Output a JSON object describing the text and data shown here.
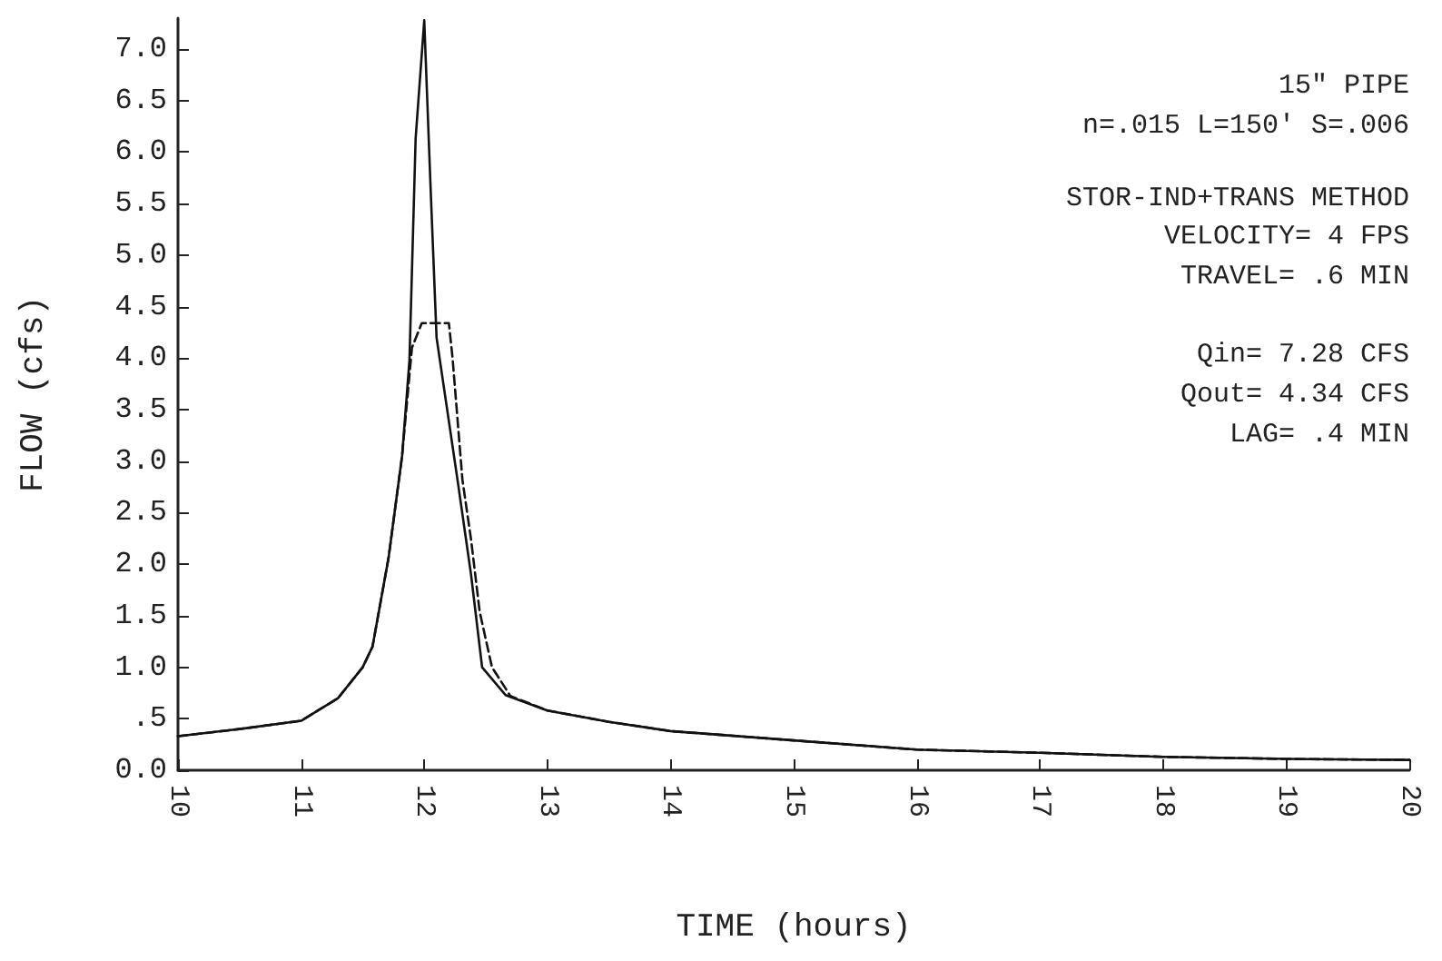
{
  "chart_data": {
    "type": "line",
    "xlabel": "TIME (hours)",
    "ylabel": "FLOW (cfs)",
    "xlim": [
      10,
      20
    ],
    "xticks": [
      10,
      11,
      12,
      13,
      14,
      15,
      16,
      17,
      18,
      19,
      20
    ],
    "ylim": [
      0,
      7.3
    ],
    "yticks": [
      {
        "value": 0,
        "label": "0.0"
      },
      {
        "value": 0.5,
        "label": ".5"
      },
      {
        "value": 1,
        "label": "1.0"
      },
      {
        "value": 1.5,
        "label": "1.5"
      },
      {
        "value": 2,
        "label": "2.0"
      },
      {
        "value": 2.5,
        "label": "2.5"
      },
      {
        "value": 3,
        "label": "3.0"
      },
      {
        "value": 3.5,
        "label": "3.5"
      },
      {
        "value": 4,
        "label": "4.0"
      },
      {
        "value": 4.5,
        "label": "4.5"
      },
      {
        "value": 5,
        "label": "5.0"
      },
      {
        "value": 5.5,
        "label": "5.5"
      },
      {
        "value": 6,
        "label": "6.0"
      },
      {
        "value": 6.5,
        "label": "6.5"
      },
      {
        "value": 7,
        "label": "7.0"
      }
    ],
    "grid": false,
    "marker": "none",
    "series": [
      {
        "color": "#111111",
        "line_style": "solid",
        "x": [
          10,
          10.5,
          11,
          11.3,
          11.5,
          11.58,
          11.71,
          11.82,
          11.88,
          11.93,
          12.0,
          12.05,
          12.1,
          12.27,
          12.38,
          12.47,
          12.66,
          13,
          13.5,
          14,
          15,
          16,
          17,
          18,
          19,
          20
        ],
        "values": [
          0.33,
          0.4,
          0.48,
          0.7,
          1.0,
          1.2,
          2.06,
          3.05,
          3.98,
          6.13,
          7.28,
          5.7,
          4.2,
          2.82,
          1.9,
          1.0,
          0.73,
          0.58,
          0.47,
          0.38,
          0.29,
          0.2,
          0.17,
          0.13,
          0.11,
          0.1
        ]
      },
      {
        "color": "#111111",
        "line_style": "dashed",
        "x": [
          10,
          10.5,
          11,
          11.3,
          11.5,
          11.58,
          11.71,
          11.82,
          11.9,
          11.98,
          12.1,
          12.2,
          12.23,
          12.31,
          12.38,
          12.45,
          12.55,
          12.7,
          13,
          13.5,
          14,
          15,
          16,
          17,
          18,
          19,
          20
        ],
        "values": [
          0.33,
          0.4,
          0.48,
          0.7,
          1.0,
          1.2,
          2.06,
          3.05,
          4.1,
          4.34,
          4.34,
          4.34,
          4.0,
          2.82,
          2.24,
          1.54,
          1.0,
          0.72,
          0.58,
          0.47,
          0.38,
          0.29,
          0.2,
          0.17,
          0.13,
          0.11,
          0.1
        ]
      }
    ],
    "annotations": [
      "15\" PIPE",
      "n=.015 L=150' S=.006",
      "STOR-IND+TRANS METHOD",
      "VELOCITY= 4 FPS",
      "TRAVEL= .6 MIN",
      "Qin= 7.28 CFS",
      "Qout= 4.34 CFS",
      "LAG= .4 MIN"
    ]
  }
}
